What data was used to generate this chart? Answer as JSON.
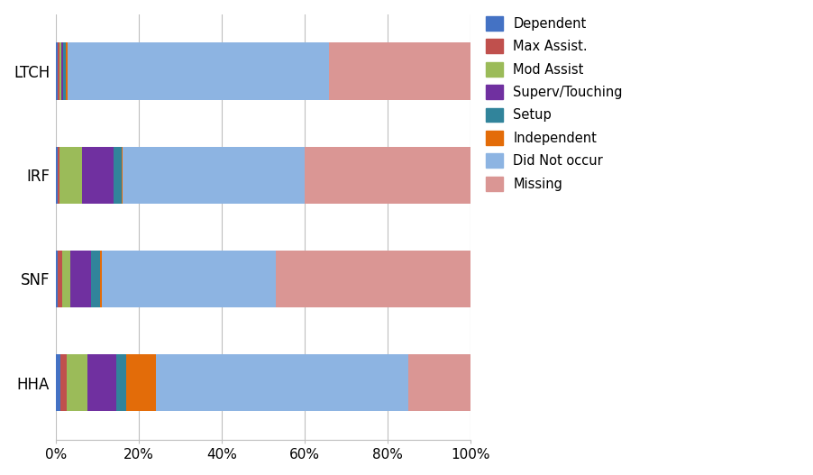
{
  "categories": [
    "HHA",
    "SNF",
    "IRF",
    "LTCH"
  ],
  "series": [
    {
      "label": "Dependent",
      "color": "#4472C4",
      "values": [
        1.0,
        0.5,
        0.3,
        0.5
      ]
    },
    {
      "label": "Max Assist.",
      "color": "#C0504D",
      "values": [
        1.5,
        1.0,
        0.5,
        0.3
      ]
    },
    {
      "label": "Mod Assist",
      "color": "#9BBB59",
      "values": [
        5.0,
        2.0,
        5.5,
        0.5
      ]
    },
    {
      "label": "Superv/Touching",
      "color": "#7030A0",
      "values": [
        7.0,
        5.0,
        7.5,
        0.5
      ]
    },
    {
      "label": "Setup",
      "color": "#31849B",
      "values": [
        2.5,
        2.0,
        2.0,
        0.5
      ]
    },
    {
      "label": "Independent",
      "color": "#E36C09",
      "values": [
        7.0,
        0.5,
        0.2,
        0.5
      ]
    },
    {
      "label": "Did Not occur",
      "color": "#8DB4E2",
      "values": [
        61.0,
        42.0,
        44.0,
        63.0
      ]
    },
    {
      "label": "Missing",
      "color": "#DA9694",
      "values": [
        15.0,
        47.0,
        40.0,
        34.2
      ]
    }
  ],
  "xlim": [
    0,
    100
  ],
  "xtick_labels": [
    "0%",
    "20%",
    "40%",
    "60%",
    "80%",
    "100%"
  ],
  "xtick_values": [
    0,
    20,
    40,
    60,
    80,
    100
  ],
  "background_color": "#FFFFFF",
  "grid_color": "#BFBFBF",
  "bar_height": 0.55,
  "legend_fontsize": 10.5,
  "tick_fontsize": 11,
  "ytick_fontsize": 12
}
